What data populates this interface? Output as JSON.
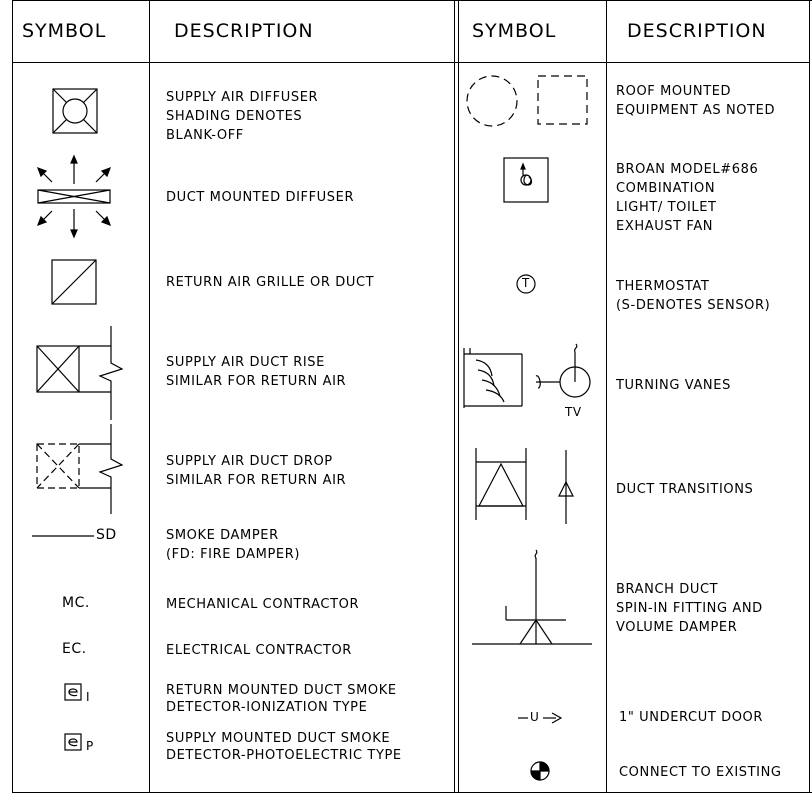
{
  "headers": {
    "symbol_left": "SYMBOL",
    "description_left": "DESCRIPTION",
    "symbol_right": "SYMBOL",
    "description_right": "DESCRIPTION"
  },
  "left_rows": [
    {
      "symbol": "supply-air-diffuser-icon",
      "lines": [
        "SUPPLY AIR DIFFUSER",
        "SHADING DENOTES",
        "BLANK-OFF"
      ]
    },
    {
      "symbol": "duct-mounted-diffuser-icon",
      "lines": [
        "DUCT MOUNTED DIFFUSER"
      ]
    },
    {
      "symbol": "return-air-grille-icon",
      "lines": [
        "RETURN AIR GRILLE OR DUCT"
      ]
    },
    {
      "symbol": "duct-rise-icon",
      "lines": [
        "SUPPLY AIR DUCT RISE",
        "SIMILAR FOR RETURN AIR"
      ]
    },
    {
      "symbol": "duct-drop-icon",
      "lines": [
        "SUPPLY AIR DUCT DROP",
        "SIMILAR FOR RETURN AIR"
      ]
    },
    {
      "symbol": "smoke-damper-icon",
      "symbol_text": "SD",
      "lines": [
        "SMOKE DAMPER",
        "(FD: FIRE DAMPER)"
      ]
    },
    {
      "symbol_text": "MC.",
      "lines": [
        "MECHANICAL CONTRACTOR"
      ]
    },
    {
      "symbol_text": "EC.",
      "lines": [
        "ELECTRICAL CONTRACTOR"
      ]
    },
    {
      "symbol": "smoke-detector-icon",
      "symbol_text": "I",
      "lines": [
        "RETURN MOUNTED DUCT SMOKE",
        "DETECTOR-IONIZATION TYPE"
      ]
    },
    {
      "symbol": "smoke-detector-icon",
      "symbol_text": "P",
      "lines": [
        "SUPPLY MOUNTED DUCT SMOKE",
        "DETECTOR-PHOTOELECTRIC TYPE"
      ]
    }
  ],
  "right_rows": [
    {
      "symbol": "roof-equipment-icon",
      "lines": [
        "ROOF MOUNTED",
        "EQUIPMENT AS NOTED"
      ]
    },
    {
      "symbol": "exhaust-fan-icon",
      "lines": [
        "BROAN MODEL#686",
        "COMBINATION",
        "LIGHT/ TOILET",
        "EXHAUST FAN"
      ]
    },
    {
      "symbol": "thermostat-icon",
      "symbol_text": "T",
      "lines": [
        "THERMOSTAT",
        "(S-DENOTES SENSOR)"
      ]
    },
    {
      "symbol": "turning-vanes-icon",
      "symbol_text": "TV",
      "lines": [
        "TURNING VANES"
      ]
    },
    {
      "symbol": "duct-transitions-icon",
      "lines": [
        "DUCT TRANSITIONS"
      ]
    },
    {
      "symbol": "branch-duct-icon",
      "lines": [
        "BRANCH DUCT",
        "SPIN-IN FITTING AND",
        "VOLUME DAMPER"
      ]
    },
    {
      "symbol": "undercut-door-icon",
      "symbol_text": "U",
      "lines": [
        "1\" UNDERCUT DOOR"
      ]
    },
    {
      "symbol": "connect-existing-icon",
      "lines": [
        "CONNECT TO EXISTING"
      ]
    }
  ]
}
